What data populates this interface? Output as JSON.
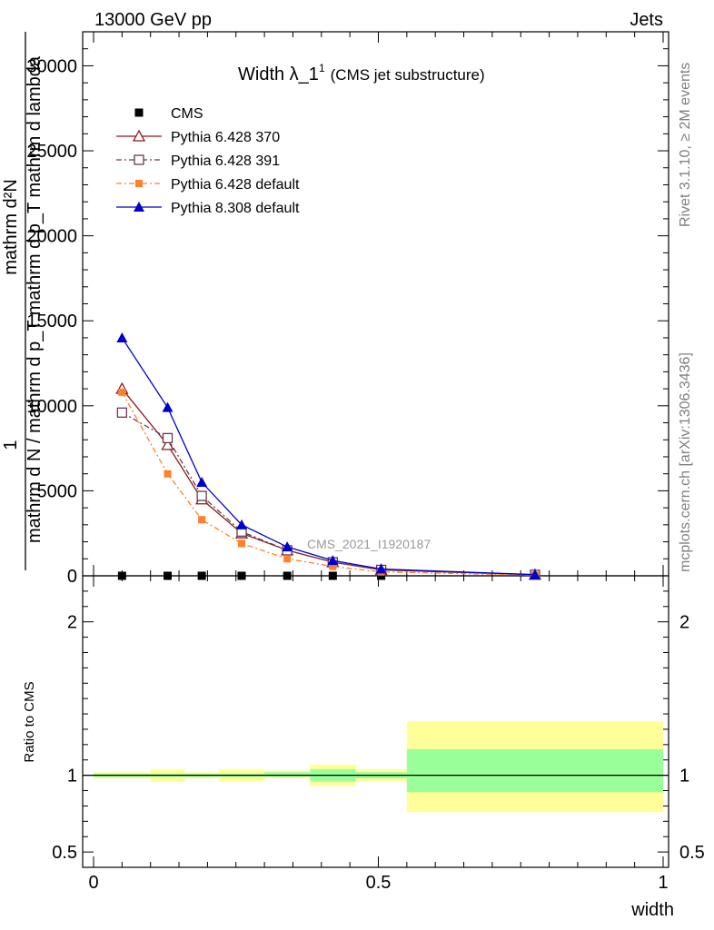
{
  "header": {
    "left": "13000 GeV pp",
    "right": "Jets"
  },
  "title": {
    "main": "Width λ_1",
    "sup": "1",
    "sub": "(CMS jet substructure)"
  },
  "side_labels": {
    "rivet": "Rivet 3.1.10, ≥ 2M events",
    "mcplots": "mcplots.cern.ch [arXiv:1306.3436]"
  },
  "watermark": "CMS_2021_I1920187",
  "ylabel_main": {
    "numerator_one": "1",
    "numerator_line": "mathrm d²N",
    "denominator_line": "mathrm d N / mathrm d p_T mathrm d p_T mathrm d lambda"
  },
  "ylabel_ratio": "Ratio to CMS",
  "xlabel": "width",
  "colors": {
    "cms": "#000000",
    "py370": "#8b1a1a",
    "py391": "#6b3a52",
    "pydef": "#ff7f2a",
    "py8": "#0000cc",
    "band_inner": "#99ff99",
    "band_outer": "#ffff99"
  },
  "chart_data": {
    "type": "line",
    "xlim": [
      0,
      1
    ],
    "ylim_main": [
      0,
      32000
    ],
    "ylim_ratio": [
      0.4,
      2.3
    ],
    "x_ticks": [
      "0",
      "0.5",
      "1"
    ],
    "y_ticks_main": [
      "0",
      "5000",
      "10000",
      "15000",
      "20000",
      "25000",
      "30000"
    ],
    "y_ticks_ratio": [
      "0.5",
      "1",
      "2"
    ],
    "legend_position": "top-left",
    "bins": [
      [
        0.0,
        0.1
      ],
      [
        0.1,
        0.16
      ],
      [
        0.16,
        0.22
      ],
      [
        0.22,
        0.3
      ],
      [
        0.3,
        0.38
      ],
      [
        0.38,
        0.46
      ],
      [
        0.46,
        0.55
      ],
      [
        0.55,
        1.0
      ]
    ],
    "series": [
      {
        "name": "CMS",
        "key": "cms",
        "x": [
          0.05,
          0.13,
          0.19,
          0.26,
          0.34,
          0.42,
          0.505,
          0.775
        ],
        "values": [
          0,
          0,
          0,
          0,
          0,
          0,
          0,
          0
        ]
      },
      {
        "name": "Pythia 6.428 370",
        "key": "py370",
        "x": [
          0.05,
          0.13,
          0.19,
          0.26,
          0.34,
          0.42,
          0.505,
          0.775
        ],
        "values": [
          11000,
          7700,
          4500,
          2500,
          1500,
          800,
          350,
          60
        ]
      },
      {
        "name": "Pythia 6.428 391",
        "key": "py391",
        "x": [
          0.05,
          0.13,
          0.19,
          0.26,
          0.34,
          0.42,
          0.505,
          0.775
        ],
        "values": [
          9600,
          8100,
          4700,
          2600,
          1500,
          800,
          350,
          60
        ]
      },
      {
        "name": "Pythia 6.428 default",
        "key": "pydef",
        "x": [
          0.05,
          0.13,
          0.19,
          0.26,
          0.34,
          0.42,
          0.505,
          0.775
        ],
        "values": [
          10800,
          6000,
          3300,
          1900,
          1000,
          550,
          230,
          40
        ]
      },
      {
        "name": "Pythia 8.308 default",
        "key": "py8",
        "x": [
          0.05,
          0.13,
          0.19,
          0.26,
          0.34,
          0.42,
          0.505,
          0.775
        ],
        "values": [
          14000,
          9900,
          5500,
          3000,
          1700,
          900,
          400,
          70
        ]
      }
    ],
    "ratio_bands": {
      "inner_low": [
        0.99,
        0.99,
        0.99,
        0.99,
        0.99,
        0.96,
        0.98,
        0.89
      ],
      "inner_high": [
        1.01,
        1.01,
        1.01,
        1.01,
        1.02,
        1.04,
        1.02,
        1.17
      ],
      "outer_low": [
        0.98,
        0.96,
        0.98,
        0.96,
        0.98,
        0.93,
        0.96,
        0.76
      ],
      "outer_high": [
        1.02,
        1.04,
        1.02,
        1.04,
        1.03,
        1.07,
        1.04,
        1.35
      ]
    }
  }
}
